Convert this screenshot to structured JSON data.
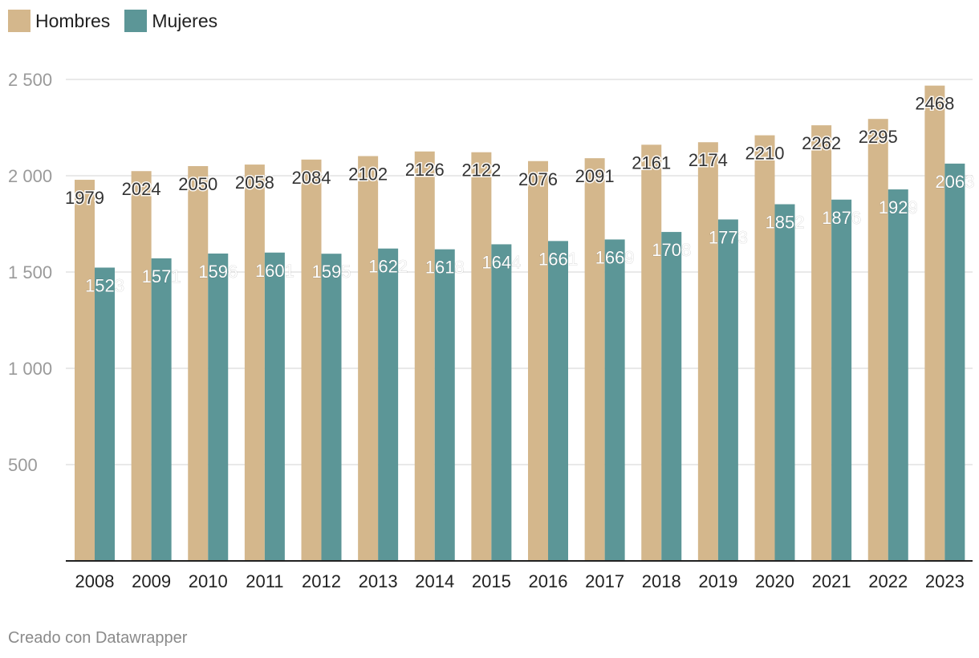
{
  "colors": {
    "Hombres": "#d4b78c",
    "Mujeres": "#5c9697",
    "grid": "#e2e2e2",
    "axis": "#222222"
  },
  "footer": {
    "credit": "Creado con Datawrapper"
  },
  "chart_data": {
    "type": "bar",
    "title": "",
    "xlabel": "",
    "ylabel": "",
    "categories": [
      "2008",
      "2009",
      "2010",
      "2011",
      "2012",
      "2013",
      "2014",
      "2015",
      "2016",
      "2017",
      "2018",
      "2019",
      "2020",
      "2021",
      "2022",
      "2023"
    ],
    "series": [
      {
        "name": "Hombres",
        "values": [
          1979,
          2024,
          2050,
          2058,
          2084,
          2102,
          2126,
          2122,
          2076,
          2091,
          2161,
          2174,
          2210,
          2262,
          2295,
          2468
        ]
      },
      {
        "name": "Mujeres",
        "values": [
          1523,
          1571,
          1596,
          1601,
          1595,
          1622,
          1618,
          1644,
          1661,
          1669,
          1708,
          1773,
          1852,
          1876,
          1929,
          2063
        ]
      }
    ],
    "ylim": [
      0,
      2500
    ],
    "yticks": [
      500,
      1000,
      1500,
      2000,
      2500
    ],
    "ytick_labels": [
      "500",
      "1 000",
      "1 500",
      "2 000",
      "2 500"
    ],
    "grid": true,
    "legend": "top-left",
    "data_labels": true
  }
}
